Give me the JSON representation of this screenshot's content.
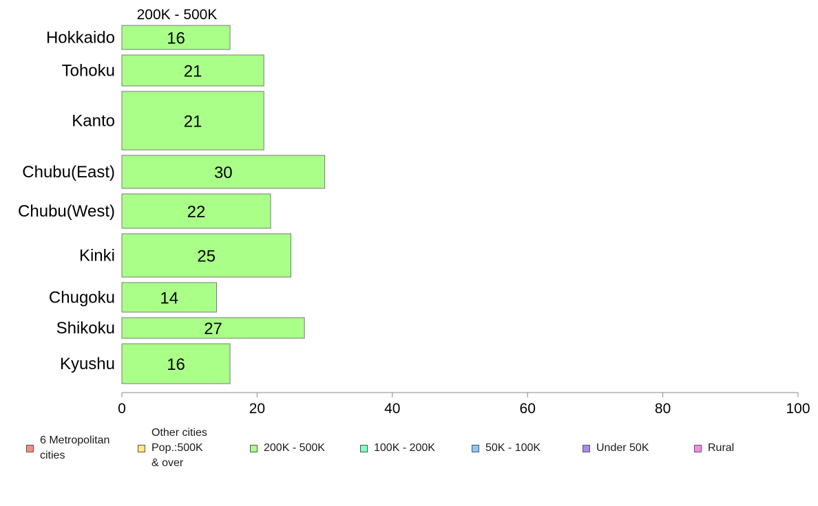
{
  "chart_data": {
    "type": "bar",
    "orientation": "horizontal",
    "title": "",
    "series_label": "200K - 500K",
    "xlabel": "",
    "ylabel": "",
    "xlim": [
      0,
      100
    ],
    "x_ticks": [
      "0",
      "20",
      "40",
      "60",
      "80",
      "100"
    ],
    "grid": false,
    "categories": [
      "Hokkaido",
      "Tohoku",
      "Kanto",
      "Chubu(East)",
      "Chubu(West)",
      "Kinki",
      "Chugoku",
      "Shikoku",
      "Kyushu"
    ],
    "series": [
      {
        "name": "200K - 500K",
        "color": "#aaff88",
        "values": [
          16,
          21,
          21,
          30,
          22,
          25,
          14,
          27,
          16
        ]
      }
    ],
    "data_labels": [
      "16",
      "21",
      "21",
      "30",
      "22",
      "25",
      "14",
      "27",
      "16"
    ],
    "legend_position": "bottom",
    "legend": [
      {
        "label": "6 Metropolitan\n cities",
        "color": "#ff8a80"
      },
      {
        "label": "Other cities\nPop.:500K\n & over",
        "color": "#ffeb80"
      },
      {
        "label": "200K - 500K",
        "color": "#aaff88"
      },
      {
        "label": "100K - 200K",
        "color": "#80ffc8"
      },
      {
        "label": "50K - 100K",
        "color": "#88c8ff"
      },
      {
        "label": "Under 50K",
        "color": "#aa88ff"
      },
      {
        "label": "Rural",
        "color": "#ff88ee"
      }
    ]
  }
}
